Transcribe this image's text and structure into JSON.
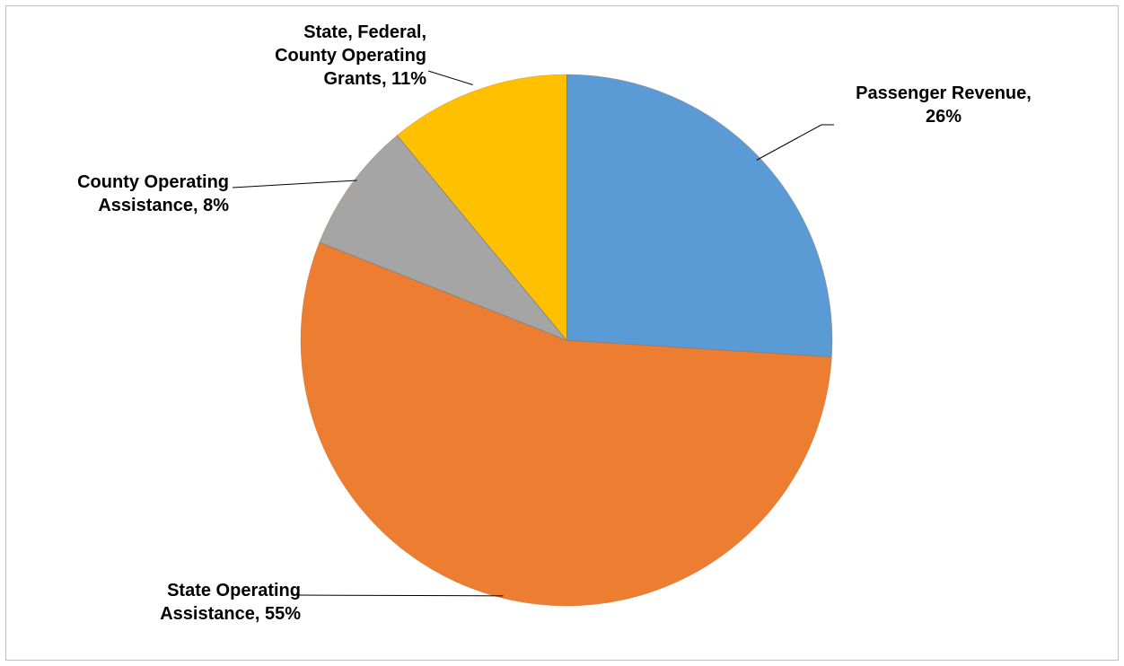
{
  "chart_data": {
    "type": "pie",
    "slices": [
      {
        "name": "Passenger Revenue",
        "value": 26,
        "label": "Passenger Revenue,\n26%",
        "color": "#5b9bd5"
      },
      {
        "name": "State Operating Assistance",
        "value": 55,
        "label": "State Operating\nAssistance, 55%",
        "color": "#ed7d31"
      },
      {
        "name": "County Operating Assistance",
        "value": 8,
        "label": "County Operating\nAssistance, 8%",
        "color": "#a5a5a5"
      },
      {
        "name": "State, Federal, County Operating Grants",
        "value": 11,
        "label": "State, Federal,\nCounty Operating\nGrants, 11%",
        "color": "#ffc000"
      }
    ],
    "start_angle": "12 o'clock",
    "direction": "clockwise",
    "labels": "outside with leader lines",
    "legend": "none"
  }
}
